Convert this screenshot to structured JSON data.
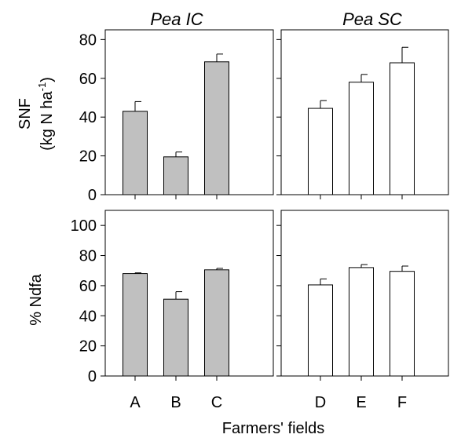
{
  "chart_data": [
    {
      "type": "bar",
      "panel": "top-left",
      "title": "Pea IC",
      "ylabel": "SNF",
      "ylabel2": "(kg N ha",
      "ylabel_sup": "-1",
      "ylabel_close": ")",
      "ylim": [
        0,
        85
      ],
      "yticks": [
        "0",
        "20",
        "40",
        "60",
        "80"
      ],
      "categories": [
        "A",
        "B",
        "C"
      ],
      "values": [
        43,
        19.5,
        68.5
      ],
      "errors": [
        5,
        2.5,
        4
      ],
      "bar_color": "#c0c0c0"
    },
    {
      "type": "bar",
      "panel": "top-right",
      "title": "Pea SC",
      "ylim": [
        0,
        85
      ],
      "categories": [
        "D",
        "E",
        "F"
      ],
      "values": [
        44.5,
        58,
        68
      ],
      "errors": [
        4,
        4,
        8
      ],
      "bar_color": "#ffffff"
    },
    {
      "type": "bar",
      "panel": "bottom-left",
      "ylabel": "% Ndfa",
      "ylim": [
        0,
        110
      ],
      "yticks": [
        "0",
        "20",
        "40",
        "60",
        "80",
        "100"
      ],
      "categories": [
        "A",
        "B",
        "C"
      ],
      "values": [
        68,
        51,
        70.5
      ],
      "errors": [
        0.5,
        5,
        1
      ],
      "bar_color": "#c0c0c0"
    },
    {
      "type": "bar",
      "panel": "bottom-right",
      "ylim": [
        0,
        110
      ],
      "categories": [
        "D",
        "E",
        "F"
      ],
      "values": [
        60.5,
        72,
        69.5
      ],
      "errors": [
        4,
        2,
        3.5
      ],
      "bar_color": "#ffffff"
    }
  ],
  "xlabel": "Farmers' fields"
}
